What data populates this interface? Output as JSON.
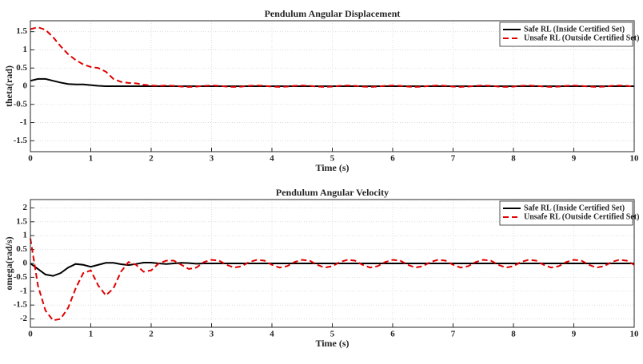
{
  "chart_data": [
    {
      "type": "line",
      "title": "Pendulum Angular Displacement",
      "xlabel": "Time (s)",
      "ylabel": "theta(rad)",
      "xlim": [
        0,
        10
      ],
      "ylim": [
        -1.8,
        1.8
      ],
      "xticks": [
        0,
        1,
        2,
        3,
        4,
        5,
        6,
        7,
        8,
        9,
        10
      ],
      "yticks": [
        -1.5,
        -1,
        -0.5,
        0,
        0.5,
        1,
        1.5
      ],
      "grid": true,
      "legend": "upper right",
      "x": [
        0,
        0.125,
        0.25,
        0.375,
        0.5,
        0.625,
        0.75,
        0.875,
        1,
        1.125,
        1.25,
        1.375,
        1.5,
        1.625,
        1.75,
        1.875,
        2,
        2.125,
        2.25,
        2.375,
        2.5,
        2.625,
        2.75,
        2.875,
        3,
        3.125,
        3.25,
        3.375,
        3.5,
        3.625,
        3.75,
        3.875,
        4,
        4.125,
        4.25,
        4.375,
        4.5,
        4.625,
        4.75,
        4.875,
        5,
        5.125,
        5.25,
        5.375,
        5.5,
        5.625,
        5.75,
        5.875,
        6,
        6.125,
        6.25,
        6.375,
        6.5,
        6.625,
        6.75,
        6.875,
        7,
        7.125,
        7.25,
        7.375,
        7.5,
        7.625,
        7.75,
        7.875,
        8,
        8.125,
        8.25,
        8.375,
        8.5,
        8.625,
        8.75,
        8.875,
        9,
        9.125,
        9.25,
        9.375,
        9.5,
        9.625,
        9.75,
        9.875,
        10
      ],
      "series": [
        {
          "name": "Safe RL (Inside Certified Set)",
          "color": "#000000",
          "linestyle": "solid",
          "values": [
            0.15,
            0.2,
            0.2,
            0.15,
            0.1,
            0.06,
            0.05,
            0.05,
            0.03,
            0.01,
            0,
            0,
            0,
            0,
            0,
            0,
            0,
            0,
            0,
            0,
            0,
            0,
            0,
            0,
            0,
            0,
            0,
            0,
            0,
            0,
            0,
            0,
            0,
            0,
            0,
            0,
            0,
            0,
            0,
            0,
            0,
            0,
            0,
            0,
            0,
            0,
            0,
            0,
            0,
            0,
            0,
            0,
            0,
            0,
            0,
            0,
            0,
            0,
            0,
            0,
            0,
            0,
            0,
            0,
            0,
            0,
            0,
            0,
            0,
            0,
            0,
            0,
            0,
            0,
            0,
            0,
            0,
            0,
            0,
            0,
            0
          ]
        },
        {
          "name": "Unsafe RL (Outside Certified Set)",
          "color": "#e00000",
          "linestyle": "dashed",
          "values": [
            1.57,
            1.62,
            1.55,
            1.35,
            1.1,
            0.88,
            0.72,
            0.6,
            0.53,
            0.5,
            0.4,
            0.2,
            0.12,
            0.09,
            0.08,
            0.04,
            0.02,
            0.01,
            0.02,
            0.01,
            -0.01,
            -0.02,
            -0.01,
            0.01,
            0.02,
            0.01,
            -0.01,
            -0.02,
            -0.01,
            0.01,
            0.02,
            0.01,
            -0.01,
            -0.02,
            -0.01,
            0.01,
            0.02,
            0.01,
            -0.01,
            -0.02,
            -0.01,
            0.01,
            0.02,
            0.01,
            -0.01,
            -0.02,
            -0.01,
            0.01,
            0.02,
            0.01,
            -0.01,
            -0.02,
            -0.01,
            0.01,
            0.02,
            0.01,
            -0.01,
            -0.02,
            -0.01,
            0.01,
            0.02,
            0.01,
            -0.01,
            -0.02,
            -0.01,
            0.01,
            0.02,
            0.01,
            -0.01,
            -0.02,
            -0.01,
            0.01,
            0.02,
            0.01,
            -0.01,
            -0.02,
            -0.01,
            0.01,
            0.02,
            0.01,
            -0.01
          ]
        }
      ]
    },
    {
      "type": "line",
      "title": "Pendulum Angular Velocity",
      "xlabel": "Time (s)",
      "ylabel": "omega(rad/s)",
      "xlim": [
        0,
        10
      ],
      "ylim": [
        -2.3,
        2.3
      ],
      "xticks": [
        0,
        1,
        2,
        3,
        4,
        5,
        6,
        7,
        8,
        9,
        10
      ],
      "yticks": [
        -2,
        -1.5,
        -1,
        -0.5,
        0,
        0.5,
        1,
        1.5,
        2
      ],
      "grid": true,
      "legend": "upper right",
      "x": [
        0,
        0.125,
        0.25,
        0.375,
        0.5,
        0.625,
        0.75,
        0.875,
        1,
        1.125,
        1.25,
        1.375,
        1.5,
        1.625,
        1.75,
        1.875,
        2,
        2.125,
        2.25,
        2.375,
        2.5,
        2.625,
        2.75,
        2.875,
        3,
        3.125,
        3.25,
        3.375,
        3.5,
        3.625,
        3.75,
        3.875,
        4,
        4.125,
        4.25,
        4.375,
        4.5,
        4.625,
        4.75,
        4.875,
        5,
        5.125,
        5.25,
        5.375,
        5.5,
        5.625,
        5.75,
        5.875,
        6,
        6.125,
        6.25,
        6.375,
        6.5,
        6.625,
        6.75,
        6.875,
        7,
        7.125,
        7.25,
        7.375,
        7.5,
        7.625,
        7.75,
        7.875,
        8,
        8.125,
        8.25,
        8.375,
        8.5,
        8.625,
        8.75,
        8.875,
        9,
        9.125,
        9.25,
        9.375,
        9.5,
        9.625,
        9.75,
        9.875,
        10
      ],
      "series": [
        {
          "name": "Safe RL (Inside Certified Set)",
          "color": "#000000",
          "linestyle": "solid",
          "values": [
            0,
            -0.2,
            -0.4,
            -0.45,
            -0.35,
            -0.15,
            -0.02,
            -0.05,
            -0.12,
            -0.05,
            0.02,
            0.02,
            -0.03,
            -0.06,
            -0.02,
            0.03,
            0.03,
            0,
            -0.02,
            0,
            0.02,
            0.01,
            -0.01,
            0,
            0,
            0,
            0,
            0,
            0,
            0,
            0,
            0,
            0,
            0,
            0,
            0,
            0,
            0,
            0,
            0,
            0,
            0,
            0,
            0,
            0,
            0,
            0,
            0,
            0,
            0,
            0,
            0,
            0,
            0,
            0,
            0,
            0,
            0,
            0,
            0,
            0,
            0,
            0,
            0,
            0,
            0,
            0,
            0,
            0,
            0,
            0,
            0,
            0,
            0,
            0,
            0,
            0,
            0,
            0,
            0,
            0
          ]
        },
        {
          "name": "Unsafe RL (Outside Certified Set)",
          "color": "#e00000",
          "linestyle": "dashed",
          "values": [
            0.9,
            -0.8,
            -1.7,
            -2.05,
            -2.0,
            -1.6,
            -0.9,
            -0.35,
            -0.25,
            -0.8,
            -1.15,
            -0.9,
            -0.3,
            0.05,
            -0.05,
            -0.3,
            -0.25,
            0,
            0.1,
            0.1,
            -0.05,
            -0.2,
            -0.15,
            0.05,
            0.13,
            0.1,
            -0.05,
            -0.15,
            -0.1,
            0.05,
            0.13,
            0.1,
            -0.05,
            -0.15,
            -0.1,
            0.05,
            0.13,
            0.1,
            -0.05,
            -0.15,
            -0.1,
            0.05,
            0.13,
            0.1,
            -0.05,
            -0.15,
            -0.1,
            0.05,
            0.13,
            0.1,
            -0.05,
            -0.15,
            -0.1,
            0.05,
            0.13,
            0.1,
            -0.05,
            -0.15,
            -0.1,
            0.05,
            0.13,
            0.1,
            -0.05,
            -0.15,
            -0.1,
            0.05,
            0.13,
            0.1,
            -0.05,
            -0.15,
            -0.1,
            0.05,
            0.13,
            0.1,
            -0.05,
            -0.15,
            -0.1,
            0.05,
            0.13,
            0.1,
            -0.05
          ]
        }
      ]
    }
  ]
}
